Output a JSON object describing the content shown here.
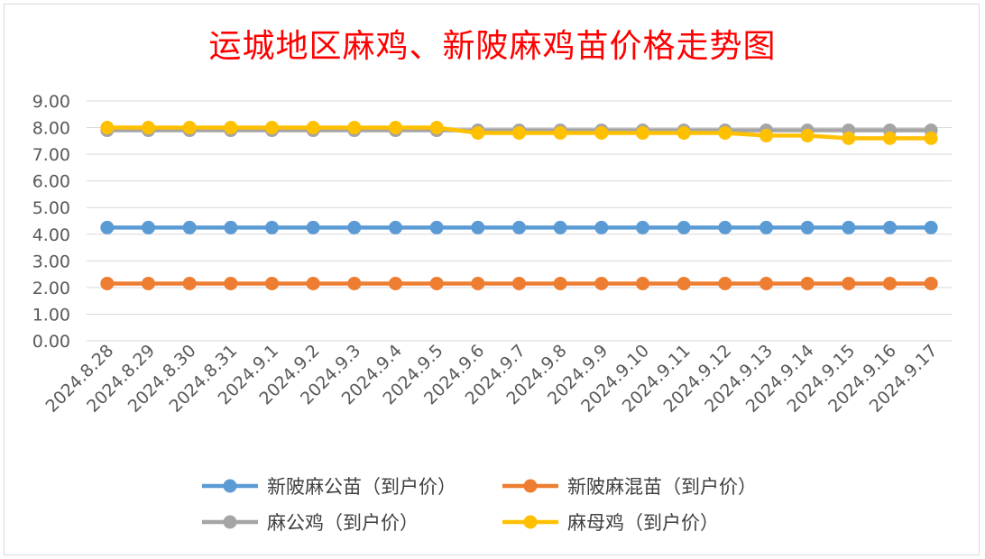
{
  "chart_data": {
    "type": "line",
    "title": "运城地区麻鸡、新陂麻鸡苗价格走势图",
    "categories": [
      "2024.8.28",
      "2024.8.29",
      "2024.8.30",
      "2024.8.31",
      "2024.9.1",
      "2024.9.2",
      "2024.9.3",
      "2024.9.4",
      "2024.9.5",
      "2024.9.6",
      "2024.9.7",
      "2024.9.8",
      "2024.9.9",
      "2024.9.10",
      "2024.9.11",
      "2024.9.12",
      "2024.9.13",
      "2024.9.14",
      "2024.9.15",
      "2024.9.16",
      "2024.9.17"
    ],
    "ylim": [
      0,
      9
    ],
    "yticks": [
      "0.00",
      "1.00",
      "2.00",
      "3.00",
      "4.00",
      "5.00",
      "6.00",
      "7.00",
      "8.00",
      "9.00"
    ],
    "grid": true,
    "legend_position": "bottom",
    "series": [
      {
        "name": "新陂麻公苗（到户价）",
        "color": "#5b9bd5",
        "values": [
          4.25,
          4.25,
          4.25,
          4.25,
          4.25,
          4.25,
          4.25,
          4.25,
          4.25,
          4.25,
          4.25,
          4.25,
          4.25,
          4.25,
          4.25,
          4.25,
          4.25,
          4.25,
          4.25,
          4.25,
          4.25
        ]
      },
      {
        "name": "新陂麻混苗（到户价）",
        "color": "#ed7d31",
        "values": [
          2.15,
          2.15,
          2.15,
          2.15,
          2.15,
          2.15,
          2.15,
          2.15,
          2.15,
          2.15,
          2.15,
          2.15,
          2.15,
          2.15,
          2.15,
          2.15,
          2.15,
          2.15,
          2.15,
          2.15,
          2.15
        ]
      },
      {
        "name": "麻公鸡（到户价）",
        "color": "#a5a5a5",
        "values": [
          7.9,
          7.9,
          7.9,
          7.9,
          7.9,
          7.9,
          7.9,
          7.9,
          7.9,
          7.9,
          7.9,
          7.9,
          7.9,
          7.9,
          7.9,
          7.9,
          7.9,
          7.9,
          7.9,
          7.9,
          7.9
        ]
      },
      {
        "name": "麻母鸡（到户价）",
        "color": "#ffc000",
        "values": [
          8.0,
          8.0,
          8.0,
          8.0,
          8.0,
          8.0,
          8.0,
          8.0,
          8.0,
          7.8,
          7.8,
          7.8,
          7.8,
          7.8,
          7.8,
          7.8,
          7.7,
          7.7,
          7.6,
          7.6,
          7.6
        ]
      }
    ]
  }
}
